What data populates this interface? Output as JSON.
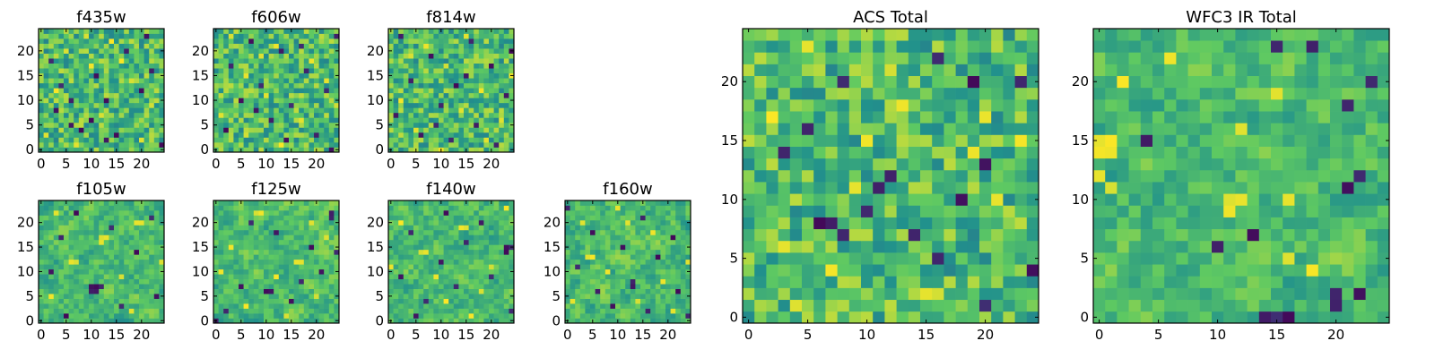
{
  "figure": {
    "colormap": "viridis",
    "colormap_stops": [
      "#440154",
      "#3b528b",
      "#21918c",
      "#5ec962",
      "#fde725"
    ],
    "frame_color": "#000000",
    "background": "#ffffff"
  },
  "chart_data": [
    {
      "id": "f435w",
      "type": "heatmap",
      "title": "f435w",
      "grid_size": [
        25,
        25
      ],
      "xlim": [
        0,
        24
      ],
      "ylim": [
        0,
        24
      ],
      "xticks": [
        0,
        5,
        10,
        15,
        20
      ],
      "yticks": [
        0,
        5,
        10,
        15,
        20
      ],
      "xtick_labels": [
        "0",
        "5",
        "10",
        "15",
        "20"
      ],
      "ytick_labels": [
        "0",
        "5",
        "10",
        "15",
        "20"
      ],
      "dark_cells": [
        [
          21,
          23
        ],
        [
          11,
          15
        ],
        [
          4,
          13
        ],
        [
          20,
          12
        ],
        [
          6,
          10
        ],
        [
          13,
          10
        ],
        [
          3,
          8
        ],
        [
          10,
          6
        ],
        [
          6,
          5
        ],
        [
          15,
          3
        ],
        [
          8,
          4
        ],
        [
          24,
          1
        ],
        [
          13,
          2
        ],
        [
          17,
          20
        ],
        [
          2,
          18
        ],
        [
          22,
          16
        ]
      ],
      "bright_cells": [
        [
          5,
          20
        ],
        [
          14,
          22
        ],
        [
          10,
          17
        ],
        [
          18,
          14
        ],
        [
          3,
          12
        ],
        [
          22,
          9
        ],
        [
          12,
          7
        ],
        [
          1,
          3
        ],
        [
          20,
          2
        ],
        [
          7,
          1
        ],
        [
          16,
          18
        ],
        [
          9,
          23
        ]
      ]
    },
    {
      "id": "f606w",
      "type": "heatmap",
      "title": "f606w",
      "grid_size": [
        25,
        25
      ],
      "xlim": [
        0,
        24
      ],
      "ylim": [
        0,
        24
      ],
      "xticks": [
        0,
        5,
        10,
        15,
        20
      ],
      "yticks": [
        0,
        5,
        10,
        15,
        20
      ],
      "xtick_labels": [
        "0",
        "5",
        "10",
        "15",
        "20"
      ],
      "ytick_labels": [
        "0",
        "5",
        "10",
        "15",
        "20"
      ],
      "dark_cells": [
        [
          24,
          23
        ],
        [
          7,
          22
        ],
        [
          13,
          20
        ],
        [
          3,
          17
        ],
        [
          18,
          16
        ],
        [
          9,
          13
        ],
        [
          22,
          12
        ],
        [
          5,
          10
        ],
        [
          15,
          9
        ],
        [
          11,
          6
        ],
        [
          2,
          4
        ],
        [
          20,
          3
        ],
        [
          14,
          2
        ],
        [
          23,
          0
        ],
        [
          8,
          8
        ],
        [
          17,
          21
        ]
      ],
      "bright_cells": [
        [
          3,
          23
        ],
        [
          12,
          21
        ],
        [
          19,
          18
        ],
        [
          6,
          15
        ],
        [
          22,
          14
        ],
        [
          10,
          11
        ],
        [
          1,
          7
        ],
        [
          17,
          6
        ],
        [
          6,
          3
        ],
        [
          13,
          1
        ],
        [
          24,
          9
        ],
        [
          9,
          19
        ]
      ]
    },
    {
      "id": "f814w",
      "type": "heatmap",
      "title": "f814w",
      "grid_size": [
        25,
        25
      ],
      "xlim": [
        0,
        24
      ],
      "ylim": [
        0,
        24
      ],
      "xticks": [
        0,
        5,
        10,
        15,
        20
      ],
      "yticks": [
        0,
        5,
        10,
        15,
        20
      ],
      "xtick_labels": [
        "0",
        "5",
        "10",
        "15",
        "20"
      ],
      "ytick_labels": [
        "0",
        "5",
        "10",
        "15",
        "20"
      ],
      "dark_cells": [
        [
          2,
          23
        ],
        [
          16,
          22
        ],
        [
          8,
          19
        ],
        [
          20,
          17
        ],
        [
          4,
          14
        ],
        [
          13,
          13
        ],
        [
          23,
          11
        ],
        [
          10,
          9
        ],
        [
          1,
          7
        ],
        [
          17,
          5
        ],
        [
          6,
          3
        ],
        [
          12,
          2
        ],
        [
          21,
          1
        ],
        [
          15,
          15
        ],
        [
          24,
          20
        ],
        [
          9,
          5
        ]
      ],
      "bright_cells": [
        [
          7,
          21
        ],
        [
          11,
          17
        ],
        [
          18,
          12
        ],
        [
          2,
          10
        ],
        [
          14,
          8
        ],
        [
          22,
          6
        ],
        [
          5,
          4
        ],
        [
          19,
          2
        ],
        [
          10,
          0
        ],
        [
          24,
          15
        ],
        [
          4,
          19
        ],
        [
          15,
          23
        ]
      ]
    },
    {
      "id": "f105w",
      "type": "heatmap",
      "title": "f105w",
      "grid_size": [
        25,
        25
      ],
      "xlim": [
        0,
        24
      ],
      "ylim": [
        0,
        24
      ],
      "xticks": [
        0,
        5,
        10,
        15,
        20
      ],
      "yticks": [
        0,
        5,
        10,
        15,
        20
      ],
      "xtick_labels": [
        "0",
        "5",
        "10",
        "15",
        "20"
      ],
      "ytick_labels": [
        "0",
        "5",
        "10",
        "15",
        "20"
      ],
      "dark_cells": [
        [
          10,
          7
        ],
        [
          11,
          7
        ],
        [
          10,
          6
        ],
        [
          11,
          6
        ],
        [
          12,
          7
        ],
        [
          4,
          17
        ],
        [
          19,
          14
        ],
        [
          16,
          3
        ],
        [
          2,
          10
        ],
        [
          22,
          21
        ],
        [
          7,
          22
        ],
        [
          23,
          5
        ],
        [
          14,
          19
        ],
        [
          5,
          1
        ]
      ],
      "bright_cells": [
        [
          12,
          17
        ],
        [
          13,
          17
        ],
        [
          12,
          16
        ],
        [
          6,
          12
        ],
        [
          7,
          12
        ],
        [
          19,
          20
        ],
        [
          20,
          20
        ],
        [
          16,
          9
        ],
        [
          2,
          5
        ],
        [
          18,
          2
        ],
        [
          24,
          12
        ],
        [
          3,
          22
        ]
      ]
    },
    {
      "id": "f125w",
      "type": "heatmap",
      "title": "f125w",
      "grid_size": [
        25,
        25
      ],
      "xlim": [
        0,
        24
      ],
      "ylim": [
        0,
        24
      ],
      "xticks": [
        0,
        5,
        10,
        15,
        20
      ],
      "yticks": [
        0,
        5,
        10,
        15,
        20
      ],
      "xtick_labels": [
        "0",
        "5",
        "10",
        "15",
        "20"
      ],
      "ytick_labels": [
        "0",
        "5",
        "10",
        "15",
        "20"
      ],
      "dark_cells": [
        [
          23,
          22
        ],
        [
          23,
          21
        ],
        [
          10,
          6
        ],
        [
          11,
          6
        ],
        [
          19,
          15
        ],
        [
          5,
          7
        ],
        [
          15,
          4
        ],
        [
          2,
          2
        ],
        [
          12,
          18
        ],
        [
          0,
          0
        ],
        [
          21,
          10
        ],
        [
          7,
          20
        ],
        [
          17,
          8
        ],
        [
          24,
          14
        ]
      ],
      "bright_cells": [
        [
          8,
          22
        ],
        [
          9,
          22
        ],
        [
          16,
          12
        ],
        [
          17,
          12
        ],
        [
          3,
          15
        ],
        [
          20,
          5
        ],
        [
          12,
          9
        ],
        [
          6,
          3
        ],
        [
          22,
          17
        ],
        [
          1,
          10
        ],
        [
          14,
          1
        ],
        [
          19,
          20
        ]
      ]
    },
    {
      "id": "f140w",
      "type": "heatmap",
      "title": "f140w",
      "grid_size": [
        25,
        25
      ],
      "xlim": [
        0,
        24
      ],
      "ylim": [
        0,
        24
      ],
      "xticks": [
        0,
        5,
        10,
        15,
        20
      ],
      "yticks": [
        0,
        5,
        10,
        15,
        20
      ],
      "xtick_labels": [
        "0",
        "5",
        "10",
        "15",
        "20"
      ],
      "ytick_labels": [
        "0",
        "5",
        "10",
        "15",
        "20"
      ],
      "dark_cells": [
        [
          23,
          15
        ],
        [
          24,
          15
        ],
        [
          23,
          14
        ],
        [
          24,
          2
        ],
        [
          4,
          18
        ],
        [
          10,
          12
        ],
        [
          13,
          7
        ],
        [
          18,
          20
        ],
        [
          7,
          4
        ],
        [
          15,
          16
        ],
        [
          2,
          9
        ],
        [
          20,
          9
        ],
        [
          11,
          22
        ],
        [
          5,
          1
        ]
      ],
      "bright_cells": [
        [
          14,
          19
        ],
        [
          15,
          19
        ],
        [
          6,
          14
        ],
        [
          7,
          14
        ],
        [
          20,
          11
        ],
        [
          11,
          4
        ],
        [
          2,
          20
        ],
        [
          18,
          6
        ],
        [
          23,
          23
        ],
        [
          0,
          11
        ],
        [
          16,
          1
        ],
        [
          9,
          9
        ]
      ]
    },
    {
      "id": "f160w",
      "type": "heatmap",
      "title": "f160w",
      "grid_size": [
        25,
        25
      ],
      "xlim": [
        0,
        24
      ],
      "ylim": [
        0,
        24
      ],
      "xticks": [
        0,
        5,
        10,
        15,
        20
      ],
      "yticks": [
        0,
        5,
        10,
        15,
        20
      ],
      "xtick_labels": [
        "0",
        "5",
        "10",
        "15",
        "20"
      ],
      "ytick_labels": [
        "0",
        "5",
        "10",
        "15",
        "20"
      ],
      "dark_cells": [
        [
          13,
          8
        ],
        [
          13,
          7
        ],
        [
          24,
          1
        ],
        [
          5,
          18
        ],
        [
          18,
          13
        ],
        [
          9,
          3
        ],
        [
          21,
          17
        ],
        [
          2,
          11
        ],
        [
          15,
          21
        ],
        [
          11,
          15
        ],
        [
          6,
          6
        ],
        [
          22,
          6
        ],
        [
          16,
          2
        ],
        [
          0,
          23
        ]
      ],
      "bright_cells": [
        [
          4,
          13
        ],
        [
          5,
          13
        ],
        [
          12,
          20
        ],
        [
          19,
          8
        ],
        [
          1,
          4
        ],
        [
          8,
          10
        ],
        [
          17,
          18
        ],
        [
          21,
          2
        ],
        [
          10,
          23
        ],
        [
          24,
          12
        ],
        [
          14,
          4
        ],
        [
          3,
          20
        ]
      ]
    },
    {
      "id": "acs_total",
      "type": "heatmap",
      "title": "ACS Total",
      "grid_size": [
        25,
        25
      ],
      "xlim": [
        0,
        24
      ],
      "ylim": [
        0,
        24
      ],
      "xticks": [
        0,
        5,
        10,
        15,
        20
      ],
      "yticks": [
        0,
        5,
        10,
        15,
        20
      ],
      "xtick_labels": [
        "0",
        "5",
        "10",
        "15",
        "20"
      ],
      "ytick_labels": [
        "0",
        "5",
        "10",
        "15",
        "20"
      ],
      "dark_cells": [
        [
          19,
          20
        ],
        [
          23,
          20
        ],
        [
          8,
          20
        ],
        [
          16,
          22
        ],
        [
          12,
          12
        ],
        [
          20,
          13
        ],
        [
          10,
          9
        ],
        [
          7,
          8
        ],
        [
          6,
          8
        ],
        [
          8,
          7
        ],
        [
          14,
          7
        ],
        [
          16,
          5
        ],
        [
          20,
          1
        ],
        [
          24,
          4
        ],
        [
          3,
          14
        ],
        [
          18,
          10
        ],
        [
          5,
          16
        ],
        [
          11,
          11
        ]
      ],
      "bright_cells": [
        [
          5,
          23
        ],
        [
          12,
          21
        ],
        [
          20,
          17
        ],
        [
          10,
          15
        ],
        [
          19,
          14
        ],
        [
          2,
          17
        ],
        [
          15,
          2
        ],
        [
          16,
          2
        ],
        [
          7,
          4
        ],
        [
          21,
          10
        ],
        [
          3,
          6
        ],
        [
          9,
          11
        ],
        [
          23,
          15
        ],
        [
          13,
          18
        ],
        [
          4,
          1
        ]
      ]
    },
    {
      "id": "wfc3_ir_total",
      "type": "heatmap",
      "title": "WFC3 IR Total",
      "grid_size": [
        25,
        25
      ],
      "xlim": [
        0,
        24
      ],
      "ylim": [
        0,
        24
      ],
      "xticks": [
        0,
        5,
        10,
        15,
        20
      ],
      "yticks": [
        0,
        5,
        10,
        15,
        20
      ],
      "xtick_labels": [
        "0",
        "5",
        "10",
        "15",
        "20"
      ],
      "ytick_labels": [
        "0",
        "5",
        "10",
        "15",
        "20"
      ],
      "dark_cells": [
        [
          10,
          6
        ],
        [
          13,
          7
        ],
        [
          15,
          0
        ],
        [
          16,
          0
        ],
        [
          14,
          0
        ],
        [
          20,
          1
        ],
        [
          20,
          2
        ],
        [
          22,
          2
        ],
        [
          21,
          11
        ],
        [
          22,
          12
        ],
        [
          4,
          15
        ],
        [
          21,
          18
        ],
        [
          23,
          20
        ],
        [
          15,
          23
        ],
        [
          18,
          23
        ]
      ],
      "bright_cells": [
        [
          0,
          15
        ],
        [
          1,
          15
        ],
        [
          0,
          14
        ],
        [
          1,
          14
        ],
        [
          0,
          12
        ],
        [
          1,
          11
        ],
        [
          11,
          10
        ],
        [
          12,
          10
        ],
        [
          11,
          9
        ],
        [
          16,
          10
        ],
        [
          15,
          19
        ],
        [
          6,
          22
        ],
        [
          2,
          20
        ],
        [
          18,
          4
        ],
        [
          12,
          16
        ],
        [
          16,
          5
        ]
      ]
    }
  ]
}
